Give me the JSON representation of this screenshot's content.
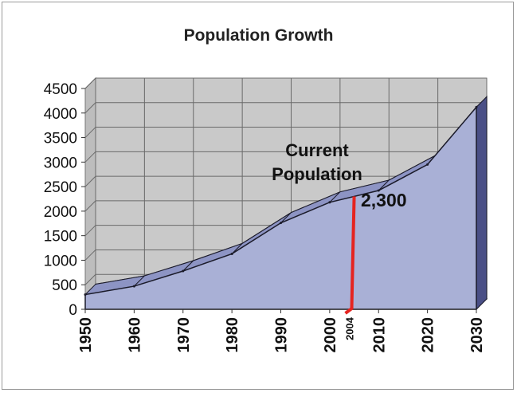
{
  "chart_data": {
    "type": "area",
    "title": "Population Growth",
    "xlabel": "",
    "ylabel": "",
    "x": [
      1950,
      1960,
      1970,
      1980,
      1990,
      2000,
      2010,
      2020,
      2030
    ],
    "values": [
      300,
      470,
      780,
      1130,
      1760,
      2180,
      2420,
      2950,
      4120
    ],
    "ylim": [
      0,
      4500
    ],
    "yticks": [
      "0",
      "500",
      "1000",
      "1500",
      "2000",
      "2500",
      "3000",
      "3500",
      "4000",
      "4500"
    ],
    "xticks": [
      "1950",
      "1960",
      "1970",
      "1980",
      "1990",
      "2000",
      "2010",
      "2020",
      "2030"
    ],
    "extra_xtick": "2004",
    "grid": true,
    "three_d": true,
    "marker": {
      "x": 2005,
      "y": 2300
    },
    "annotation_line1": "Current",
    "annotation_line2": "Population",
    "annotation_value": "2,300",
    "colors": {
      "area": "#a9b0d6",
      "area_edge": "#1b1b2a",
      "ribbon": "#8d94c4",
      "side": "#4a4f86",
      "wall": "#c9c9c9",
      "grid": "#6a6a6a",
      "marker": "#e52420"
    }
  }
}
